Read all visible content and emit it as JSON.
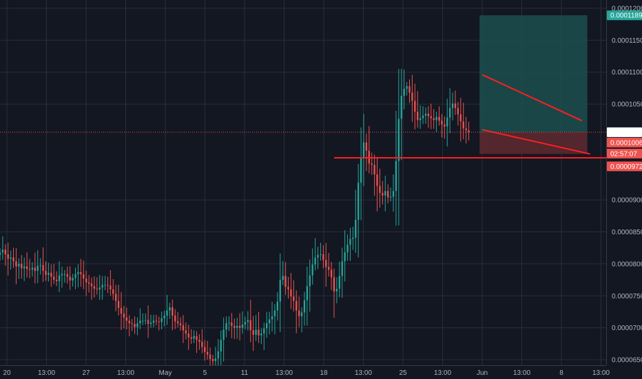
{
  "chart_data": {
    "type": "candlestick",
    "title": "",
    "xlabel": "",
    "ylabel": "",
    "grid": true,
    "x_ticks": [
      "20",
      "13:00",
      "27",
      "13:00",
      "May",
      "5",
      "11",
      "13:00",
      "18",
      "13:00",
      "25",
      "13:00",
      "Jun",
      "13:00",
      "8",
      "13:00"
    ],
    "y_ticks": [
      "0.0000650",
      "0.0000700",
      "0.0000750",
      "0.0000800",
      "0.0000850",
      "0.0000900",
      "0.0001050",
      "0.0001100",
      "0.0001150",
      "0.0001200"
    ],
    "ylim": [
      6.5e-05,
      0.00012
    ],
    "x_range_bars": [
      0,
      225
    ],
    "close_series": [
      8.18e-05,
      8.22e-05,
      8.15e-05,
      8.08e-05,
      8.1e-05,
      8.04e-05,
      7.96e-05,
      8e-05,
      7.93e-05,
      7.96e-05,
      7.92e-05,
      7.91e-05,
      7.94e-05,
      7.89e-05,
      7.97e-05,
      7.98e-05,
      7.89e-05,
      7.83e-05,
      7.86e-05,
      7.8e-05,
      7.75e-05,
      7.73e-05,
      7.82e-05,
      7.84e-05,
      7.84e-05,
      7.8e-05,
      7.74e-05,
      7.78e-05,
      7.84e-05,
      7.87e-05,
      7.84e-05,
      7.77e-05,
      7.71e-05,
      7.69e-05,
      7.65e-05,
      7.61e-05,
      7.6e-05,
      7.63e-05,
      7.67e-05,
      7.67e-05,
      7.66e-05,
      7.6e-05,
      7.53e-05,
      7.42e-05,
      7.31e-05,
      7.22e-05,
      7.16e-05,
      7.11e-05,
      7.07e-05,
      7.06e-05,
      7.01e-05,
      7.07e-05,
      7.11e-05,
      7.11e-05,
      7.12e-05,
      7.06e-05,
      7.08e-05,
      7.11e-05,
      7.1e-05,
      7.09e-05,
      7.15e-05,
      7.19e-05,
      7.27e-05,
      7.32e-05,
      7.19e-05,
      7.1e-05,
      7.07e-05,
      7.04e-05,
      6.96e-05,
      6.91e-05,
      6.85e-05,
      6.83e-05,
      6.87e-05,
      6.81e-05,
      6.78e-05,
      6.7e-05,
      6.62e-05,
      6.58e-05,
      6.51e-05,
      6.48e-05,
      6.52e-05,
      6.63e-05,
      6.81e-05,
      6.97e-05,
      7.07e-05,
      7.08e-05,
      7.03e-05,
      7e-05,
      7.03e-05,
      7e-05,
      7.05e-05,
      7.09e-05,
      7.12e-05,
      6.96e-05,
      6.89e-05,
      6.97e-05,
      6.88e-05,
      6.91e-05,
      6.99e-05,
      7.07e-05,
      7.13e-05,
      7.18e-05,
      7.27e-05,
      7.41e-05,
      7.75e-05,
      7.81e-05,
      7.64e-05,
      7.6e-05,
      7.49e-05,
      7.42e-05,
      7.27e-05,
      7.18e-05,
      7.24e-05,
      7.43e-05,
      7.65e-05,
      7.82e-05,
      7.99e-05,
      8.1e-05,
      8.14e-05,
      8.15e-05,
      8.06e-05,
      7.95e-05,
      7.91e-05,
      7.79e-05,
      7.57e-05,
      7.61e-05,
      7.81e-05,
      8.04e-05,
      8.18e-05,
      8.3e-05,
      8.39e-05,
      8.41e-05,
      8.69e-05,
      9.27e-05,
      9.65e-05,
      9.9e-05,
      9.77e-05,
      9.57e-05,
      9.55e-05,
      9.4e-05,
      9.22e-05,
      9.11e-05,
      9.07e-05,
      9.14e-05,
      9.04e-05,
      9.05e-05,
      9.14e-05,
      9.61e-05,
      0.0001027,
      0.0001063,
      0.0001074,
      0.0001078,
      0.0001068,
      0.0001055,
      0.0001038,
      0.0001025,
      0.0001028,
      0.0001032,
      0.0001035,
      0.0001031,
      0.0001028,
      0.0001025,
      0.000103,
      0.0001024,
      0.0001018,
      0.0001015,
      0.0001029,
      0.0001044,
      0.0001051,
      0.0001044,
      0.0001034,
      0.0001023,
      0.0001012,
      0.0001009,
      0.0001006
    ],
    "last_price": "0.0001006",
    "countdown": "02:57:07",
    "price_labels": {
      "target": "0.0001189",
      "current": "0.0001006",
      "stop": "0.0000972"
    },
    "position_tool": {
      "entry": 0.0001006,
      "target": 0.0001189,
      "stop": 9.72e-05,
      "start_bar": 178,
      "end_bar": 218
    },
    "drawings": {
      "support_line": {
        "y": 9.66e-05,
        "from_bar": 124,
        "to_bar": 232
      },
      "upper_trend": {
        "from": [
          179,
          0.0001096
        ],
        "to": [
          216,
          0.0001024
        ]
      },
      "lower_trend": {
        "from": [
          179,
          0.000101
        ],
        "to": [
          219,
          9.72e-05
        ]
      }
    },
    "colors": {
      "background": "#131722",
      "grid": "#2a2e39",
      "up": "#26a69a",
      "down": "#ef5350",
      "trend_line": "#ff1f1f",
      "profit_zone": "#1c4f4f",
      "loss_zone": "#5c2830",
      "target_badge": "#26a69a",
      "stop_badge": "#ef5350"
    }
  }
}
